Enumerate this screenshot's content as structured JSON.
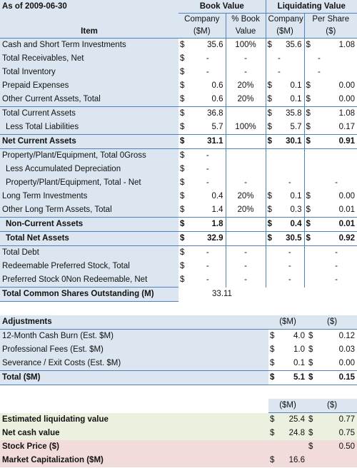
{
  "as_of": "As of 2009-06-30",
  "headers": {
    "book_value": "Book Value",
    "liquidating_value": "Liquidating Value",
    "company": "Company",
    "pct_book": "% Book",
    "per_share": "Per Share",
    "item": "Item",
    "sm": "($M)",
    "value": "Value",
    "dollar": "($)"
  },
  "currency": "$",
  "rows": [
    {
      "item": "Cash and Short Term Investments",
      "bv_d": "$",
      "bv": "35.6",
      "pct": "100%",
      "lv_d": "$",
      "lv": "35.6",
      "ps_d": "$",
      "ps": "1.08",
      "style": ""
    },
    {
      "item": "Total Receivables, Net",
      "bv_d": "$",
      "bv": "-",
      "pct": "-",
      "lv_d": "",
      "lv": "-",
      "ps_d": "",
      "ps": "-",
      "style": "",
      "lv_left": true
    },
    {
      "item": "Total Inventory",
      "bv_d": "$",
      "bv": "-",
      "pct": "-",
      "lv_d": "",
      "lv": "-",
      "ps_d": "",
      "ps": "-",
      "style": "",
      "lv_left": true
    },
    {
      "item": "Prepaid Expenses",
      "bv_d": "$",
      "bv": "0.6",
      "pct": "20%",
      "lv_d": "$",
      "lv": "0.1",
      "ps_d": "$",
      "ps": "0.00",
      "style": ""
    },
    {
      "item": "Other Current Assets, Total",
      "bv_d": "$",
      "bv": "0.6",
      "pct": "20%",
      "lv_d": "$",
      "lv": "0.1",
      "ps_d": "$",
      "ps": "0.00",
      "style": ""
    },
    {
      "item": "Total Current Assets",
      "bv_d": "$",
      "bv": "36.8",
      "pct": "",
      "lv_d": "$",
      "lv": "35.8",
      "ps_d": "$",
      "ps": "1.08",
      "style": "sub"
    },
    {
      "item": "Less Total Liabilities",
      "bv_d": "$",
      "bv": "5.7",
      "pct": "100%",
      "lv_d": "$",
      "lv": "5.7",
      "ps_d": "$",
      "ps": "0.17",
      "style": "ind"
    },
    {
      "item": "Net Current Assets",
      "bv_d": "$",
      "bv": "31.1",
      "pct": "",
      "lv_d": "$",
      "lv": "30.1",
      "ps_d": "$",
      "ps": "0.91",
      "style": "total"
    },
    {
      "item": "Property/Plant/Equipment, Total 0Gross",
      "bv_d": "$",
      "bv": "-",
      "pct": "",
      "lv_d": "",
      "lv": "",
      "ps_d": "",
      "ps": "",
      "style": "nolv"
    },
    {
      "item": "Less Accumulated Depreciation",
      "bv_d": "$",
      "bv": "-",
      "pct": "",
      "lv_d": "",
      "lv": "",
      "ps_d": "",
      "ps": "",
      "style": "nolv ind"
    },
    {
      "item": "Property/Plant/Equipment, Total - Net",
      "bv_d": "$",
      "bv": "-",
      "pct": "-",
      "lv_d": "",
      "lv": "-",
      "ps_d": "",
      "ps": "-",
      "style": "ind ctr"
    },
    {
      "item": "Long Term Investments",
      "bv_d": "$",
      "bv": "0.4",
      "pct": "20%",
      "lv_d": "$",
      "lv": "0.1",
      "ps_d": "$",
      "ps": "0.00",
      "style": ""
    },
    {
      "item": "Other Long Term Assets, Total",
      "bv_d": "$",
      "bv": "1.4",
      "pct": "20%",
      "lv_d": "$",
      "lv": "0.3",
      "ps_d": "$",
      "ps": "0.01",
      "style": ""
    },
    {
      "item": "Non-Current Assets",
      "bv_d": "$",
      "bv": "1.8",
      "pct": "",
      "lv_d": "$",
      "lv": "0.4",
      "ps_d": "$",
      "ps": "0.01",
      "style": "total ind"
    },
    {
      "item": "Total Net Assets",
      "bv_d": "$",
      "bv": "32.9",
      "pct": "",
      "lv_d": "$",
      "lv": "30.5",
      "ps_d": "$",
      "ps": "0.92",
      "style": "total ind"
    },
    {
      "item": "Total Debt",
      "bv_d": "$",
      "bv": "-",
      "pct": "-",
      "lv_d": "",
      "lv": "-",
      "ps_d": "",
      "ps": "-",
      "style": "ctr"
    },
    {
      "item": "Redeemable Preferred Stock, Total",
      "bv_d": "$",
      "bv": "-",
      "pct": "-",
      "lv_d": "",
      "lv": "-",
      "ps_d": "",
      "ps": "-",
      "style": "ctr"
    },
    {
      "item": "Preferred Stock 0Non Redeemable, Net",
      "bv_d": "$",
      "bv": "-",
      "pct": "-",
      "lv_d": "",
      "lv": "-",
      "ps_d": "",
      "ps": "-",
      "style": "ctr"
    }
  ],
  "shares": {
    "label": "Total Common Shares Outstanding (M)",
    "value": "33.11"
  },
  "adjustments": {
    "title": "Adjustments",
    "col_m": "($M)",
    "col_d": "($)",
    "items": [
      {
        "label": "12-Month Cash Burn (Est. $M)",
        "m": "4.0",
        "d": "0.12"
      },
      {
        "label": "Professional Fees (Est. $M)",
        "m": "1.0",
        "d": "0.03"
      },
      {
        "label": "Severance / Exit Costs (Est. $M)",
        "m": "0.1",
        "d": "0.00"
      }
    ],
    "total": {
      "label": "Total ($M)",
      "m": "5.1",
      "d": "0.15"
    }
  },
  "summary": {
    "col_m": "($M)",
    "col_d": "($)",
    "items": [
      {
        "label": "Estimated liquidating value",
        "m": "25.4",
        "d": "0.77",
        "color": "green"
      },
      {
        "label": "Net cash value",
        "m": "24.8",
        "d": "0.75",
        "color": "green"
      },
      {
        "label": "Stock Price ($)",
        "m": "",
        "d": "0.50",
        "color": "pink"
      },
      {
        "label": "Market Capitalization ($M)",
        "m": "16.6",
        "d": "",
        "color": "pink"
      }
    ]
  }
}
